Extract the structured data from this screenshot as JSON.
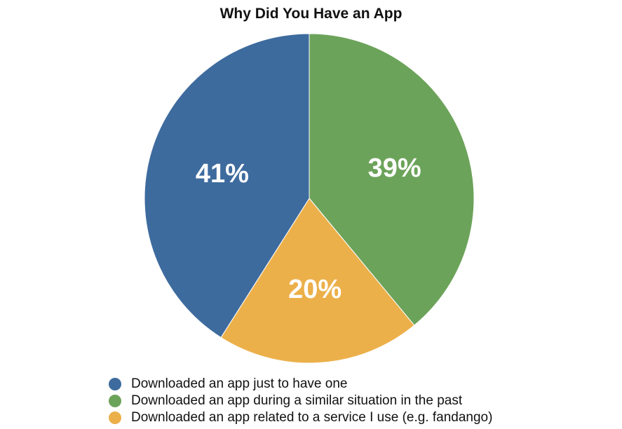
{
  "chart_data": {
    "type": "pie",
    "title": "Why Did You Have an App",
    "slices": [
      {
        "label": "Downloaded an app just to have one",
        "value": 41,
        "display": "41%",
        "color": "#3e6b9e"
      },
      {
        "label": "Downloaded an app during a similar situation in the past",
        "value": 39,
        "display": "39%",
        "color": "#6ca35a"
      },
      {
        "label": "Downloaded an app related to a service I use (e.g. fandango)",
        "value": 20,
        "display": "20%",
        "color": "#ecb04a"
      }
    ],
    "legend_position": "bottom-left"
  }
}
